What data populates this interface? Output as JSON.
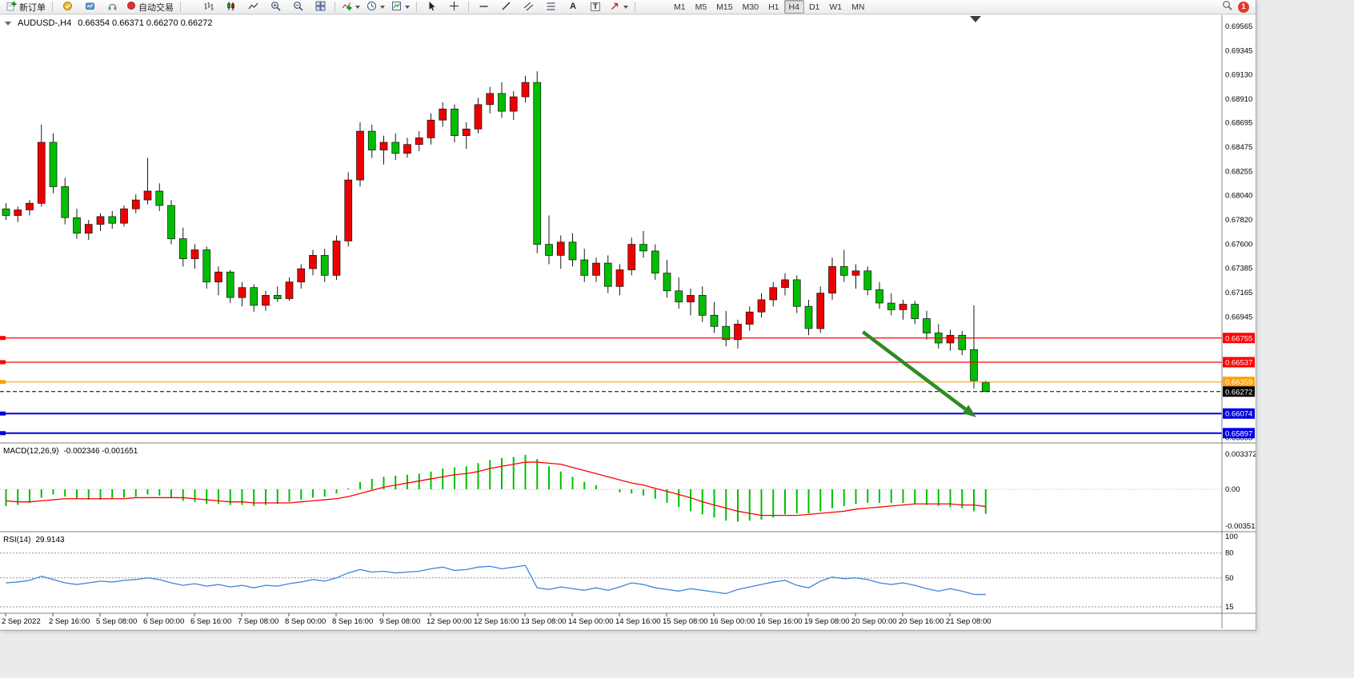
{
  "toolbar": {
    "new_order": "新订单",
    "autotrading": "自动交易",
    "timeframes": [
      "M1",
      "M5",
      "M15",
      "M30",
      "H1",
      "H4",
      "D1",
      "W1",
      "MN"
    ],
    "active_timeframe": "H4",
    "notification_badge": "1"
  },
  "chart": {
    "title": {
      "symbol_period": "AUDUSD-,H4",
      "ohlc": "0.66354 0.66371 0.66270 0.66272"
    },
    "colors": {
      "up": "#EE0000",
      "down": "#00BF00",
      "wick": "#1a1a1a",
      "macd_histogram": "#00BF00",
      "macd_signal": "#FF0000",
      "rsi": "#3E86D8",
      "arrow": "#2E8B22"
    },
    "price_axis": [
      "0.69565",
      "0.69345",
      "0.69130",
      "0.68910",
      "0.68695",
      "0.68475",
      "0.68255",
      "0.68040",
      "0.67820",
      "0.67600",
      "0.67385",
      "0.67165",
      "0.66945",
      "0.65855"
    ],
    "time_axis": [
      "2 Sep 2022",
      "2 Sep 16:00",
      "5 Sep 08:00",
      "6 Sep 00:00",
      "6 Sep 16:00",
      "7 Sep 08:00",
      "8 Sep 00:00",
      "8 Sep 16:00",
      "9 Sep 08:00",
      "12 Sep 00:00",
      "12 Sep 16:00",
      "13 Sep 08:00",
      "14 Sep 00:00",
      "14 Sep 16:00",
      "15 Sep 08:00",
      "16 Sep 00:00",
      "16 Sep 16:00",
      "19 Sep 08:00",
      "20 Sep 00:00",
      "20 Sep 16:00",
      "21 Sep 08:00"
    ],
    "lines": [
      {
        "label": "0.66755",
        "value": 0.66755,
        "color": "#FF0000",
        "width": 1.2,
        "handle": true,
        "dashed": false
      },
      {
        "label": "0.66537",
        "value": 0.66537,
        "color": "#FF0000",
        "width": 1.2,
        "handle": true,
        "dashed": false
      },
      {
        "label": "0.66359",
        "value": 0.66359,
        "color": "#FFA000",
        "width": 1.2,
        "handle": true,
        "dashed": false
      },
      {
        "label": "0.66272",
        "value": 0.66272,
        "color": "#000000",
        "width": 1,
        "handle": false,
        "dashed": true
      },
      {
        "label": "0.66074",
        "value": 0.66074,
        "color": "#0000E0",
        "width": 2,
        "handle": true,
        "dashed": false
      },
      {
        "label": "0.65897",
        "value": 0.65897,
        "color": "#0000E0",
        "width": 2,
        "handle": true,
        "dashed": false
      }
    ],
    "arrow": {
      "from": {
        "index": 72.6,
        "price": 0.6681
      },
      "to": {
        "index": 82.2,
        "price": 0.6604
      },
      "color": "#2E8B22"
    }
  },
  "macd": {
    "label": "MACD(12,26,9)",
    "values_text": "-0.002346 -0.001651",
    "axis": [
      "0.003372",
      "0.00",
      "-0.003519"
    ]
  },
  "rsi": {
    "label": "RSI(14)",
    "value_text": "29.9143",
    "axis": [
      "100",
      "80",
      "50",
      "15"
    ],
    "levels": [
      80,
      50,
      15
    ]
  },
  "chart_data": {
    "type": "candlestick",
    "symbol": "AUDUSD-",
    "timeframe": "H4",
    "price_range_visible": [
      0.65816,
      0.69666
    ],
    "candles": [
      [
        0.6792,
        0.6797,
        0.6782,
        0.6786
      ],
      [
        0.6786,
        0.6794,
        0.678,
        0.6791
      ],
      [
        0.6791,
        0.68,
        0.6786,
        0.6797
      ],
      [
        0.6797,
        0.6868,
        0.6794,
        0.6852
      ],
      [
        0.6852,
        0.686,
        0.6806,
        0.6812
      ],
      [
        0.6812,
        0.682,
        0.6778,
        0.6784
      ],
      [
        0.6784,
        0.6792,
        0.6765,
        0.677
      ],
      [
        0.677,
        0.6782,
        0.6764,
        0.6778
      ],
      [
        0.6778,
        0.6788,
        0.6772,
        0.6785
      ],
      [
        0.6785,
        0.679,
        0.6774,
        0.6779
      ],
      [
        0.6779,
        0.6795,
        0.6776,
        0.6792
      ],
      [
        0.6792,
        0.6805,
        0.6788,
        0.68
      ],
      [
        0.68,
        0.6838,
        0.6796,
        0.6808
      ],
      [
        0.6808,
        0.6815,
        0.679,
        0.6795
      ],
      [
        0.6795,
        0.68,
        0.676,
        0.6765
      ],
      [
        0.6765,
        0.6775,
        0.674,
        0.6747
      ],
      [
        0.6747,
        0.676,
        0.6738,
        0.6755
      ],
      [
        0.6755,
        0.6758,
        0.672,
        0.6726
      ],
      [
        0.6726,
        0.674,
        0.6714,
        0.6735
      ],
      [
        0.6735,
        0.6737,
        0.6707,
        0.6712
      ],
      [
        0.6712,
        0.6726,
        0.6704,
        0.6721
      ],
      [
        0.6721,
        0.6724,
        0.6699,
        0.6705
      ],
      [
        0.6705,
        0.6718,
        0.67,
        0.6714
      ],
      [
        0.6714,
        0.6722,
        0.6708,
        0.6711
      ],
      [
        0.6711,
        0.673,
        0.6709,
        0.6726
      ],
      [
        0.6726,
        0.6742,
        0.672,
        0.6738
      ],
      [
        0.6738,
        0.6755,
        0.6732,
        0.675
      ],
      [
        0.675,
        0.6756,
        0.6726,
        0.6732
      ],
      [
        0.6732,
        0.6768,
        0.6728,
        0.6763
      ],
      [
        0.6763,
        0.6825,
        0.6758,
        0.6818
      ],
      [
        0.6818,
        0.687,
        0.6812,
        0.6862
      ],
      [
        0.6862,
        0.6868,
        0.6838,
        0.6845
      ],
      [
        0.6845,
        0.6858,
        0.6832,
        0.6852
      ],
      [
        0.6852,
        0.686,
        0.6836,
        0.6842
      ],
      [
        0.6842,
        0.6856,
        0.6838,
        0.685
      ],
      [
        0.685,
        0.6862,
        0.6844,
        0.6856
      ],
      [
        0.6856,
        0.6878,
        0.685,
        0.6872
      ],
      [
        0.6872,
        0.6888,
        0.6866,
        0.6882
      ],
      [
        0.6882,
        0.6886,
        0.6852,
        0.6858
      ],
      [
        0.6858,
        0.687,
        0.6846,
        0.6864
      ],
      [
        0.6864,
        0.6892,
        0.686,
        0.6886
      ],
      [
        0.6886,
        0.6902,
        0.6878,
        0.6896
      ],
      [
        0.6896,
        0.6906,
        0.6874,
        0.688
      ],
      [
        0.688,
        0.6898,
        0.6872,
        0.6893
      ],
      [
        0.6893,
        0.6912,
        0.6888,
        0.6906
      ],
      [
        0.6906,
        0.6916,
        0.6752,
        0.676
      ],
      [
        0.676,
        0.6786,
        0.6742,
        0.675
      ],
      [
        0.675,
        0.6768,
        0.6738,
        0.6762
      ],
      [
        0.6762,
        0.677,
        0.674,
        0.6746
      ],
      [
        0.6746,
        0.6756,
        0.6726,
        0.6732
      ],
      [
        0.6732,
        0.6748,
        0.6726,
        0.6743
      ],
      [
        0.6743,
        0.675,
        0.6716,
        0.6722
      ],
      [
        0.6722,
        0.6742,
        0.6714,
        0.6737
      ],
      [
        0.6737,
        0.6766,
        0.6732,
        0.676
      ],
      [
        0.676,
        0.6772,
        0.6748,
        0.6754
      ],
      [
        0.6754,
        0.676,
        0.6728,
        0.6734
      ],
      [
        0.6734,
        0.6746,
        0.6712,
        0.6718
      ],
      [
        0.6718,
        0.673,
        0.6702,
        0.6708
      ],
      [
        0.6708,
        0.672,
        0.6696,
        0.6714
      ],
      [
        0.6714,
        0.6722,
        0.669,
        0.6696
      ],
      [
        0.6696,
        0.6708,
        0.668,
        0.6686
      ],
      [
        0.6686,
        0.67,
        0.6668,
        0.6674
      ],
      [
        0.6674,
        0.6692,
        0.6666,
        0.6688
      ],
      [
        0.6688,
        0.6704,
        0.6682,
        0.6699
      ],
      [
        0.6699,
        0.6716,
        0.6694,
        0.671
      ],
      [
        0.671,
        0.6726,
        0.6704,
        0.6721
      ],
      [
        0.6721,
        0.6734,
        0.6714,
        0.6728
      ],
      [
        0.6728,
        0.6732,
        0.6698,
        0.6704
      ],
      [
        0.6704,
        0.671,
        0.6678,
        0.6684
      ],
      [
        0.6684,
        0.6722,
        0.668,
        0.6716
      ],
      [
        0.6716,
        0.6748,
        0.671,
        0.674
      ],
      [
        0.674,
        0.6755,
        0.6726,
        0.6732
      ],
      [
        0.6732,
        0.6742,
        0.672,
        0.6736
      ],
      [
        0.6736,
        0.674,
        0.6714,
        0.6719
      ],
      [
        0.6719,
        0.6726,
        0.6702,
        0.6707
      ],
      [
        0.6707,
        0.6716,
        0.6696,
        0.6701
      ],
      [
        0.6701,
        0.671,
        0.6692,
        0.6706
      ],
      [
        0.6706,
        0.6709,
        0.6688,
        0.6693
      ],
      [
        0.6693,
        0.67,
        0.6674,
        0.668
      ],
      [
        0.668,
        0.6688,
        0.6666,
        0.6671
      ],
      [
        0.6671,
        0.6683,
        0.6664,
        0.6678
      ],
      [
        0.6678,
        0.6682,
        0.666,
        0.6665
      ],
      [
        0.6665,
        0.6705,
        0.663,
        0.6637
      ],
      [
        0.66354,
        0.66371,
        0.6627,
        0.66272
      ]
    ],
    "macd_histogram": [
      -0.0016,
      -0.0015,
      -0.0013,
      -0.0008,
      -0.0005,
      -0.0007,
      -0.0009,
      -0.001,
      -0.001,
      -0.0009,
      -0.0008,
      -0.0007,
      -0.0005,
      -0.0006,
      -0.0008,
      -0.0011,
      -0.0012,
      -0.0014,
      -0.0014,
      -0.0015,
      -0.0015,
      -0.0016,
      -0.0015,
      -0.0014,
      -0.0012,
      -0.001,
      -0.0008,
      -0.0007,
      -0.0004,
      0.0001,
      0.0007,
      0.001,
      0.0012,
      0.0013,
      0.0014,
      0.0015,
      0.0017,
      0.002,
      0.0021,
      0.0022,
      0.0025,
      0.0028,
      0.003,
      0.0031,
      0.0033,
      0.0029,
      0.0022,
      0.0017,
      0.0012,
      0.0007,
      0.0004,
      0,
      -0.0003,
      -0.0004,
      -0.0006,
      -0.0009,
      -0.0013,
      -0.0017,
      -0.0021,
      -0.0024,
      -0.0027,
      -0.003,
      -0.0031,
      -0.003,
      -0.0029,
      -0.0027,
      -0.0024,
      -0.0023,
      -0.0023,
      -0.0021,
      -0.0018,
      -0.0016,
      -0.0014,
      -0.0013,
      -0.0013,
      -0.0013,
      -0.0013,
      -0.0014,
      -0.0015,
      -0.0016,
      -0.0017,
      -0.0018,
      -0.0021,
      -0.002346
    ],
    "macd_signal": [
      -0.0011,
      -0.0012,
      -0.0012,
      -0.0011,
      -0.001,
      -0.0009,
      -0.0009,
      -0.0009,
      -0.0009,
      -0.0009,
      -0.0009,
      -0.0008,
      -0.0008,
      -0.0008,
      -0.0008,
      -0.0008,
      -0.0009,
      -0.001,
      -0.0011,
      -0.0012,
      -0.0012,
      -0.0013,
      -0.0013,
      -0.0013,
      -0.0013,
      -0.0012,
      -0.0011,
      -0.001,
      -0.0009,
      -0.0007,
      -0.0004,
      -0.0001,
      0.0002,
      0.0004,
      0.0006,
      0.0008,
      0.001,
      0.0012,
      0.0014,
      0.0015,
      0.0017,
      0.002,
      0.0022,
      0.0024,
      0.0026,
      0.0026,
      0.0025,
      0.0024,
      0.0021,
      0.0018,
      0.0015,
      0.0012,
      0.0009,
      0.0006,
      0.0004,
      0.0001,
      -0.0002,
      -0.0005,
      -0.0008,
      -0.0012,
      -0.0015,
      -0.0018,
      -0.0021,
      -0.0023,
      -0.0025,
      -0.0025,
      -0.0025,
      -0.0025,
      -0.0024,
      -0.0023,
      -0.0022,
      -0.0021,
      -0.0019,
      -0.0018,
      -0.0017,
      -0.0016,
      -0.0015,
      -0.0014,
      -0.0014,
      -0.0014,
      -0.0014,
      -0.0015,
      -0.0015,
      -0.001651
    ],
    "rsi": [
      44,
      45,
      47,
      52,
      48,
      44,
      42,
      44,
      46,
      45,
      47,
      48,
      50,
      48,
      44,
      41,
      43,
      40,
      42,
      39,
      41,
      38,
      41,
      40,
      43,
      45,
      48,
      46,
      50,
      56,
      60,
      57,
      58,
      56,
      57,
      58,
      61,
      63,
      59,
      60,
      63,
      64,
      61,
      63,
      65,
      38,
      36,
      39,
      37,
      35,
      38,
      35,
      39,
      44,
      42,
      38,
      36,
      34,
      37,
      35,
      33,
      31,
      36,
      39,
      42,
      45,
      47,
      41,
      38,
      46,
      51,
      49,
      50,
      48,
      44,
      42,
      44,
      41,
      37,
      34,
      37,
      34,
      30,
      29.9
    ]
  }
}
